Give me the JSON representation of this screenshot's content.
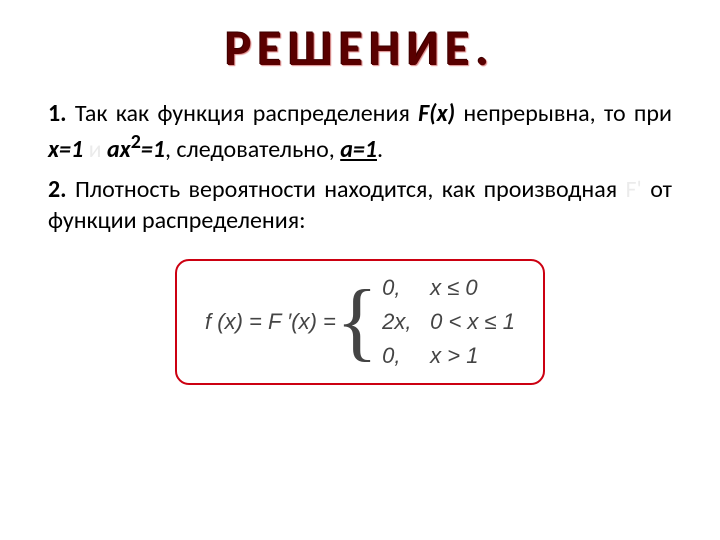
{
  "slide": {
    "title_text": "РЕШЕНИЕ.",
    "title_color": "#5a0000",
    "title_fontsize": 50,
    "background_color": "#ffffff"
  },
  "paragraphs": {
    "p1": {
      "num": "1.",
      "seg1": "Так как функция распределения ",
      "fx": "F(x)",
      "seg2": " непрерывна, то при ",
      "x1": "x=1 ",
      "dim1": "и",
      "ax_a": " ax",
      "ax_sup": "2",
      "ax_eq": "=1",
      "seg3": ", следовательно, ",
      "a1": "a=1",
      "period": "."
    },
    "p2": {
      "num": "2.",
      "seg1": "Плотность вероятности находится, как производная ",
      "dim1": "F'",
      "seg2": " от функции распределения:"
    }
  },
  "formula": {
    "lhs": "f (x) = F ′(x) = ",
    "border_color": "#cc0011",
    "cases": [
      {
        "val": "0,",
        "cond": "x ≤ 0"
      },
      {
        "val": "2x,",
        "cond": "0 < x ≤ 1"
      },
      {
        "val": "0,",
        "cond": "x > 1"
      }
    ]
  }
}
